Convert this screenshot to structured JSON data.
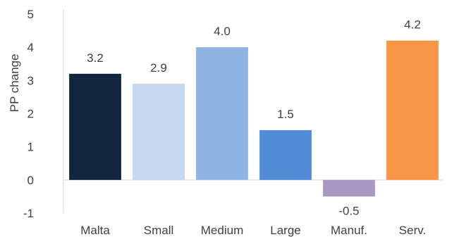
{
  "chart_data": {
    "type": "bar",
    "title": "",
    "xlabel": "",
    "ylabel": "PP change",
    "ylim": [
      -1,
      5
    ],
    "yticks": [
      -1,
      0,
      1,
      2,
      3,
      4,
      5
    ],
    "grid": false,
    "legend": "none",
    "categories": [
      "Malta",
      "Small",
      "Medium",
      "Large",
      "Manuf.",
      "Serv."
    ],
    "values": [
      3.2,
      2.9,
      4.0,
      1.5,
      -0.5,
      4.2
    ],
    "data_labels": [
      "3.2",
      "2.9",
      "4.0",
      "1.5",
      "-0.5",
      "4.2"
    ],
    "colors": [
      "#13263f",
      "#c6d8f0",
      "#8fb4e3",
      "#528bd6",
      "#a898c4",
      "#f79646"
    ]
  }
}
